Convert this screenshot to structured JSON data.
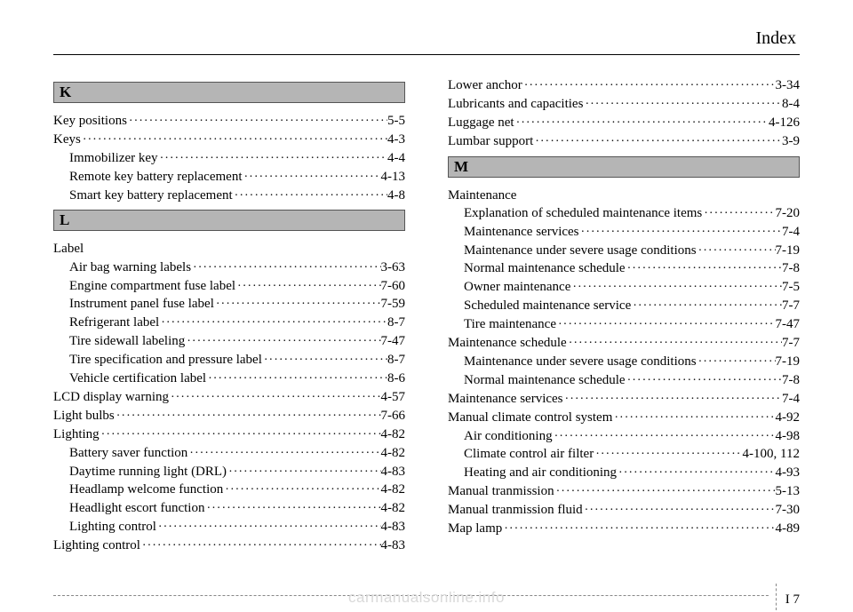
{
  "header": {
    "title": "Index"
  },
  "sections": {
    "K": {
      "letter": "K",
      "items": [
        {
          "label": "Key positions",
          "page": "5-5",
          "sub": false
        },
        {
          "label": "Keys",
          "page": "4-3",
          "sub": false
        },
        {
          "label": "Immobilizer key",
          "page": "4-4",
          "sub": true
        },
        {
          "label": "Remote key battery replacement",
          "page": "4-13",
          "sub": true
        },
        {
          "label": "Smart key battery replacement",
          "page": "4-8",
          "sub": true
        }
      ]
    },
    "L": {
      "letter": "L",
      "items": [
        {
          "label": "Label",
          "page": "",
          "sub": false
        },
        {
          "label": "Air bag warning labels",
          "page": "3-63",
          "sub": true
        },
        {
          "label": "Engine compartment fuse label",
          "page": "7-60",
          "sub": true
        },
        {
          "label": "Instrument panel fuse label",
          "page": "7-59",
          "sub": true
        },
        {
          "label": "Refrigerant label",
          "page": "8-7",
          "sub": true
        },
        {
          "label": "Tire sidewall labeling",
          "page": "7-47",
          "sub": true
        },
        {
          "label": "Tire specification and pressure label",
          "page": "8-7",
          "sub": true
        },
        {
          "label": "Vehicle certification label",
          "page": "8-6",
          "sub": true
        },
        {
          "label": "LCD display warning",
          "page": "4-57",
          "sub": false
        },
        {
          "label": "Light bulbs",
          "page": "7-66",
          "sub": false
        },
        {
          "label": "Lighting",
          "page": "4-82",
          "sub": false
        },
        {
          "label": "Battery saver function",
          "page": "4-82",
          "sub": true
        },
        {
          "label": "Daytime running light (DRL)",
          "page": "4-83",
          "sub": true
        },
        {
          "label": "Headlamp welcome function",
          "page": "4-82",
          "sub": true
        },
        {
          "label": "Headlight escort function",
          "page": "4-82",
          "sub": true
        },
        {
          "label": "Lighting control",
          "page": "4-83",
          "sub": true
        },
        {
          "label": "Lighting control",
          "page": "4-83",
          "sub": false
        }
      ]
    },
    "R1": {
      "items": [
        {
          "label": "Lower anchor",
          "page": "3-34",
          "sub": false
        },
        {
          "label": "Lubricants and capacities",
          "page": "8-4",
          "sub": false
        },
        {
          "label": "Luggage net",
          "page": "4-126",
          "sub": false
        },
        {
          "label": "Lumbar support",
          "page": "3-9",
          "sub": false
        }
      ]
    },
    "M": {
      "letter": "M",
      "items": [
        {
          "label": "Maintenance",
          "page": "",
          "sub": false
        },
        {
          "label": "Explanation of scheduled maintenance items",
          "page": "7-20",
          "sub": true
        },
        {
          "label": "Maintenance services",
          "page": "7-4",
          "sub": true
        },
        {
          "label": "Maintenance under severe usage conditions",
          "page": "7-19",
          "sub": true
        },
        {
          "label": "Normal maintenance schedule",
          "page": "7-8",
          "sub": true
        },
        {
          "label": "Owner maintenance",
          "page": "7-5",
          "sub": true
        },
        {
          "label": "Scheduled maintenance service",
          "page": "7-7",
          "sub": true
        },
        {
          "label": "Tire maintenance",
          "page": "7-47",
          "sub": true
        },
        {
          "label": "Maintenance schedule",
          "page": "7-7",
          "sub": false
        },
        {
          "label": "Maintenance under severe usage conditions",
          "page": "7-19",
          "sub": true
        },
        {
          "label": "Normal maintenance schedule",
          "page": "7-8",
          "sub": true
        },
        {
          "label": "Maintenance services",
          "page": "7-4",
          "sub": false
        },
        {
          "label": "Manual climate control system",
          "page": "4-92",
          "sub": false
        },
        {
          "label": "Air conditioning",
          "page": "4-98",
          "sub": true
        },
        {
          "label": "Climate control air filter",
          "page": "4-100, 112",
          "sub": true
        },
        {
          "label": "Heating and air conditioning",
          "page": "4-93",
          "sub": true
        },
        {
          "label": "Manual tranmission",
          "page": "5-13",
          "sub": false
        },
        {
          "label": "Manual tranmission fluid",
          "page": "7-30",
          "sub": false
        },
        {
          "label": "Map lamp",
          "page": "4-89",
          "sub": false
        }
      ]
    }
  },
  "footer": {
    "prefix": "I",
    "num": "7"
  },
  "watermark": "carmanualsonline.info"
}
